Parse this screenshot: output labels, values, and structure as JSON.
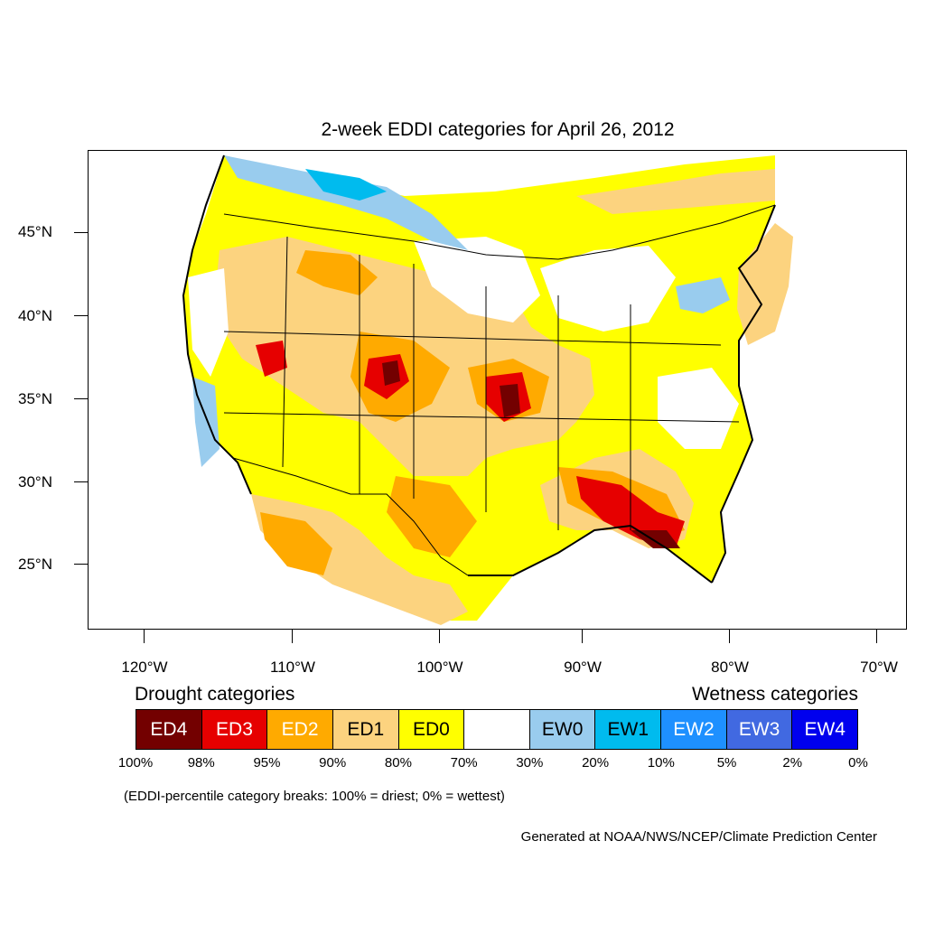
{
  "title": "2-week EDDI categories for April 26, 2012",
  "lat_labels": [
    "45°N",
    "40°N",
    "35°N",
    "30°N",
    "25°N"
  ],
  "lon_labels": [
    "120°W",
    "110°W",
    "100°W",
    "90°W",
    "80°W",
    "70°W"
  ],
  "legend": {
    "drought_heading": "Drought categories",
    "wetness_heading": "Wetness categories",
    "categories": [
      {
        "label": "ED4",
        "color": "#730000",
        "text_color": "#ffffff"
      },
      {
        "label": "ED3",
        "color": "#e60000",
        "text_color": "#ffffff"
      },
      {
        "label": "ED2",
        "color": "#ffaa00",
        "text_color": "#ffffff"
      },
      {
        "label": "ED1",
        "color": "#fcd37f",
        "text_color": "#000000"
      },
      {
        "label": "ED0",
        "color": "#ffff00",
        "text_color": "#000000"
      },
      {
        "label": "",
        "color": "#ffffff",
        "text_color": "#000000"
      },
      {
        "label": "EW0",
        "color": "#99ccee",
        "text_color": "#000000"
      },
      {
        "label": "EW1",
        "color": "#00bbee",
        "text_color": "#000000"
      },
      {
        "label": "EW2",
        "color": "#1e90ff",
        "text_color": "#ffffff"
      },
      {
        "label": "EW3",
        "color": "#4169e1",
        "text_color": "#ffffff"
      },
      {
        "label": "EW4",
        "color": "#0000ee",
        "text_color": "#ffffff"
      }
    ],
    "percent_breaks": [
      "100%",
      "98%",
      "95%",
      "90%",
      "80%",
      "70%",
      "30%",
      "20%",
      "10%",
      "5%",
      "2%",
      "0%"
    ]
  },
  "note": "(EDDI-percentile category breaks: 100% = driest; 0% = wettest)",
  "credit": "Generated at NOAA/NWS/NCEP/Climate Prediction Center"
}
